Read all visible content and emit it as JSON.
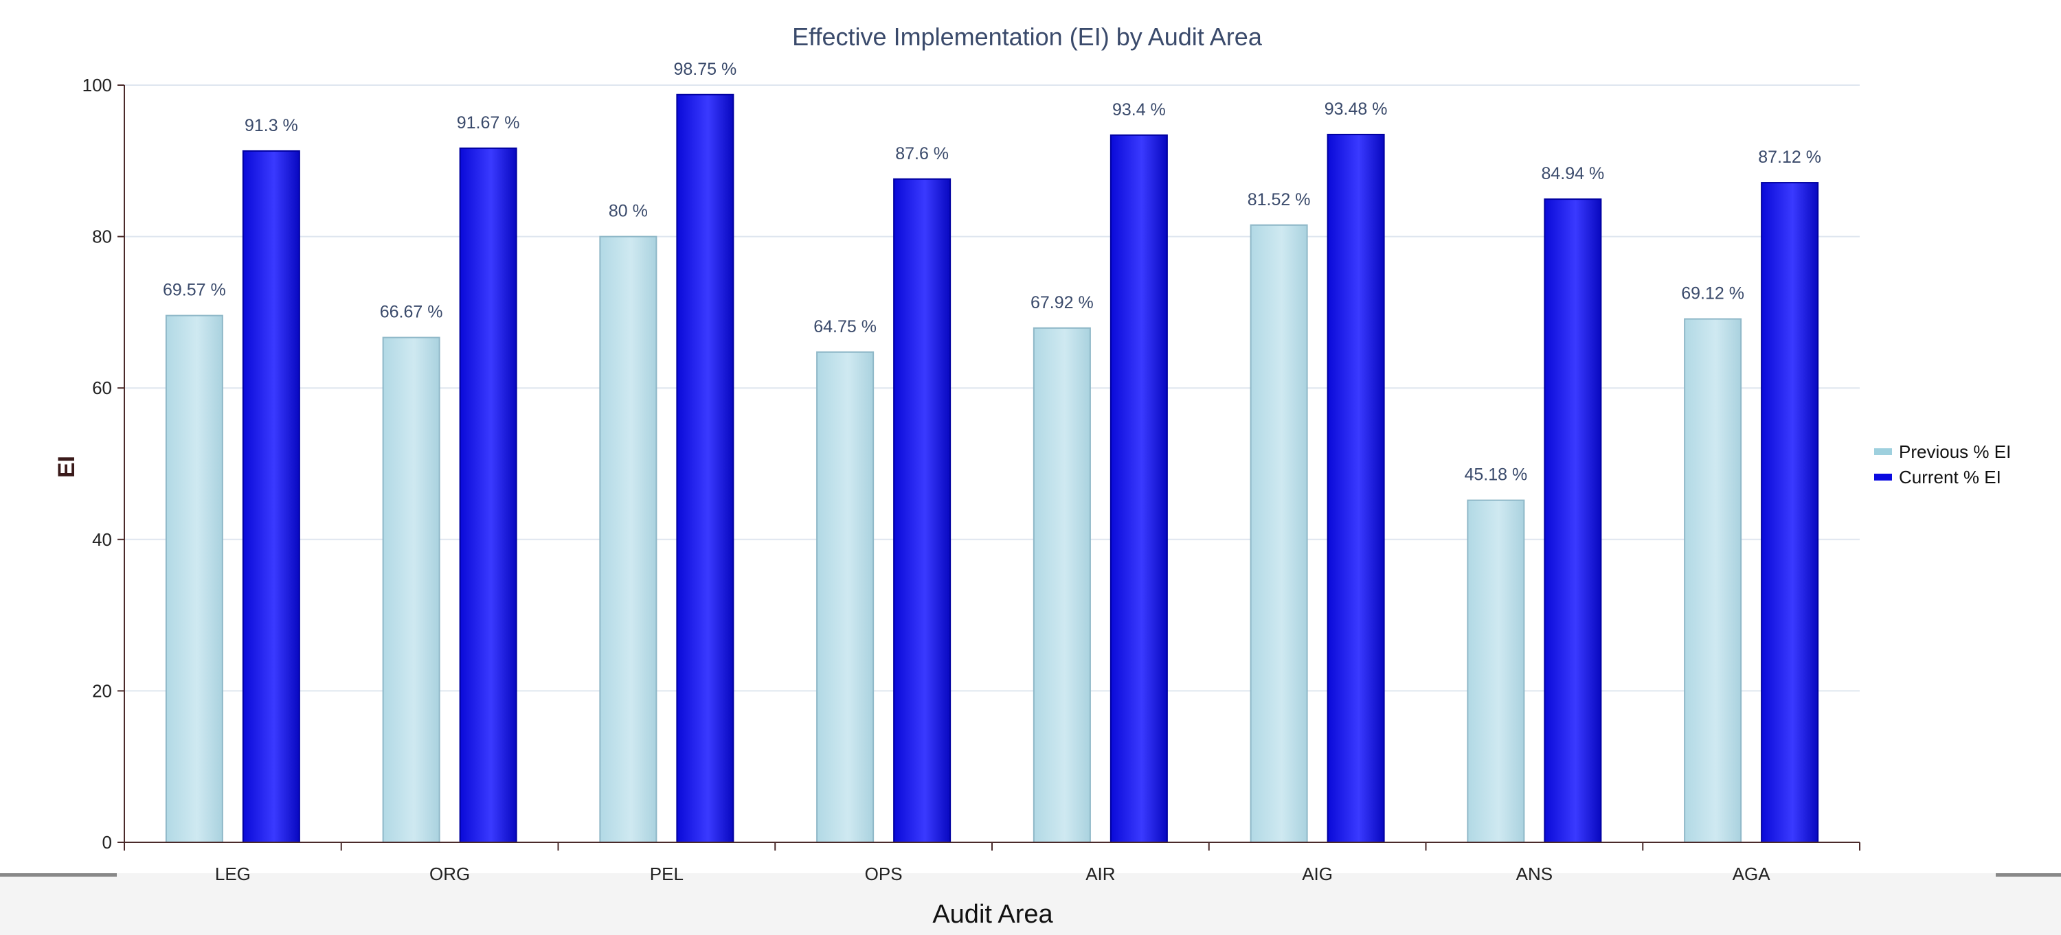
{
  "chart_data": {
    "type": "bar",
    "title": "Effective Implementation (EI) by Audit Area",
    "xlabel": "Audit Area",
    "ylabel": "EI",
    "ylim": [
      0,
      100
    ],
    "yticks": [
      0,
      20,
      40,
      60,
      80,
      100
    ],
    "grid": true,
    "legend_position": "right",
    "categories": [
      "LEG",
      "ORG",
      "PEL",
      "OPS",
      "AIR",
      "AIG",
      "ANS",
      "AGA"
    ],
    "series": [
      {
        "name": "Previous % EI",
        "color": "#bde0ea",
        "values": [
          69.57,
          66.67,
          80,
          64.75,
          67.92,
          81.52,
          45.18,
          69.12
        ],
        "labels": [
          "69.57 %",
          "66.67 %",
          "80 %",
          "64.75 %",
          "67.92 %",
          "81.52 %",
          "45.18 %",
          "69.12 %"
        ]
      },
      {
        "name": "Current % EI",
        "color": "#1010ee",
        "values": [
          91.3,
          91.67,
          98.75,
          87.6,
          93.4,
          93.48,
          84.94,
          87.12
        ],
        "labels": [
          "91.3 %",
          "91.67 %",
          "98.75 %",
          "87.6 %",
          "93.4 %",
          "93.48 %",
          "84.94 %",
          "87.12 %"
        ]
      }
    ]
  },
  "colors": {
    "title": "#3a4a6b",
    "grid": "#dfe6ef",
    "axis": "#4a2a2a",
    "label": "#3a4a6b",
    "previous_border": "#8fb8c8",
    "current_border": "#0000a0"
  }
}
